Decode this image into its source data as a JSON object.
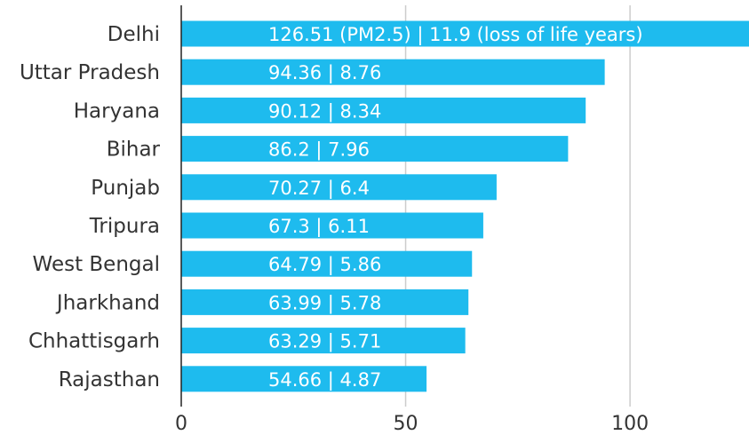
{
  "chart_data": {
    "type": "bar",
    "orientation": "horizontal",
    "categories": [
      "Delhi",
      "Uttar Pradesh",
      "Haryana",
      "Bihar",
      "Punjab",
      "Tripura",
      "West Bengal",
      "Jharkhand",
      "Chhattisgarh",
      "Rajasthan"
    ],
    "values": [
      126.51,
      94.36,
      90.12,
      86.2,
      70.27,
      67.3,
      64.79,
      63.99,
      63.29,
      54.66
    ],
    "bar_labels": [
      "126.51 (PM2.5) | 11.9 (loss of life years)",
      "94.36 | 8.76",
      "90.12 | 8.34",
      "86.2 | 7.96",
      "70.27 | 6.4",
      "67.3 | 6.11",
      "64.79 | 5.86",
      "63.99 | 5.78",
      "63.29 | 5.71",
      "54.66 | 4.87"
    ],
    "xticks": [
      0,
      50,
      100
    ],
    "xlim": [
      0,
      126.51
    ],
    "grid": true,
    "colors": {
      "bar": "#1ebbee",
      "grid": "#cccccc",
      "axis": "#222222",
      "text": "#333333",
      "bar_text": "#ffffff"
    }
  }
}
